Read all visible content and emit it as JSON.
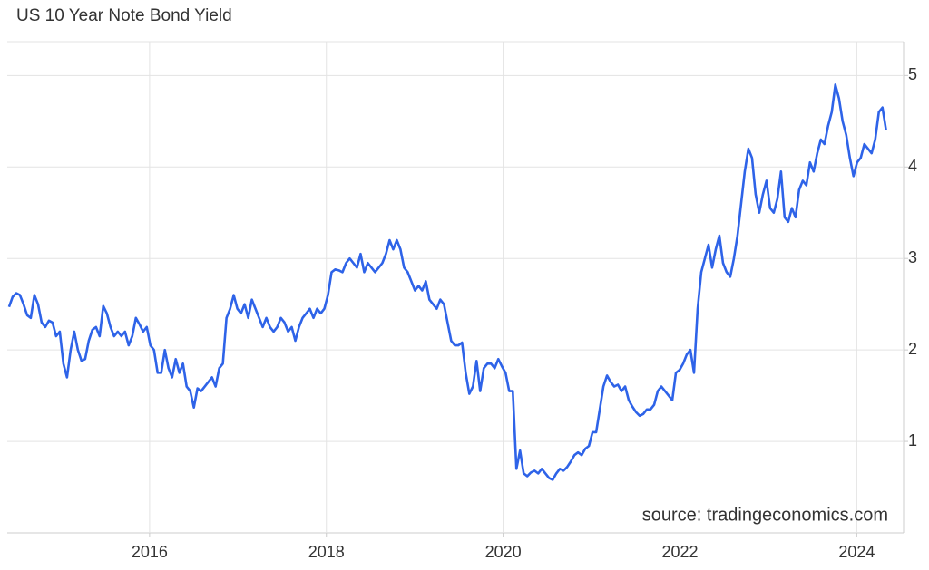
{
  "chart_data": {
    "type": "line",
    "title": "US 10 Year Note Bond Yield",
    "source": "source: tradingeconomics.com",
    "xlim": [
      2014.39,
      2024.53
    ],
    "xticks": [
      2016,
      2018,
      2020,
      2022,
      2024
    ],
    "ylim": [
      0,
      5.37
    ],
    "yticks": [
      1,
      2,
      3,
      4,
      5
    ],
    "grid": true,
    "x": [
      2014.41,
      2014.451,
      2014.492,
      2014.533,
      2014.574,
      2014.615,
      2014.656,
      2014.697,
      2014.738,
      2014.779,
      2014.82,
      2014.861,
      2014.902,
      2014.943,
      2014.984,
      2015.025,
      2015.066,
      2015.107,
      2015.148,
      2015.189,
      2015.23,
      2015.271,
      2015.312,
      2015.353,
      2015.394,
      2015.435,
      2015.476,
      2015.517,
      2015.558,
      2015.599,
      2015.64,
      2015.681,
      2015.722,
      2015.763,
      2015.804,
      2015.845,
      2015.886,
      2015.927,
      2015.968,
      2016.009,
      2016.05,
      2016.091,
      2016.132,
      2016.173,
      2016.214,
      2016.255,
      2016.296,
      2016.337,
      2016.378,
      2016.419,
      2016.46,
      2016.501,
      2016.542,
      2016.583,
      2016.624,
      2016.665,
      2016.706,
      2016.747,
      2016.788,
      2016.829,
      2016.87,
      2016.911,
      2016.952,
      2016.993,
      2017.034,
      2017.075,
      2017.116,
      2017.157,
      2017.198,
      2017.239,
      2017.28,
      2017.321,
      2017.362,
      2017.403,
      2017.444,
      2017.485,
      2017.526,
      2017.567,
      2017.608,
      2017.649,
      2017.69,
      2017.731,
      2017.772,
      2017.813,
      2017.854,
      2017.895,
      2017.936,
      2017.977,
      2018.018,
      2018.059,
      2018.1,
      2018.141,
      2018.182,
      2018.223,
      2018.264,
      2018.305,
      2018.346,
      2018.387,
      2018.428,
      2018.469,
      2018.51,
      2018.551,
      2018.592,
      2018.633,
      2018.674,
      2018.715,
      2018.756,
      2018.797,
      2018.838,
      2018.879,
      2018.92,
      2018.961,
      2019.002,
      2019.043,
      2019.084,
      2019.125,
      2019.166,
      2019.207,
      2019.248,
      2019.289,
      2019.33,
      2019.371,
      2019.412,
      2019.453,
      2019.494,
      2019.535,
      2019.576,
      2019.617,
      2019.658,
      2019.699,
      2019.74,
      2019.781,
      2019.822,
      2019.863,
      2019.904,
      2019.945,
      2019.986,
      2020.027,
      2020.068,
      2020.109,
      2020.15,
      2020.191,
      2020.232,
      2020.273,
      2020.314,
      2020.355,
      2020.396,
      2020.437,
      2020.478,
      2020.519,
      2020.56,
      2020.601,
      2020.642,
      2020.683,
      2020.724,
      2020.765,
      2020.806,
      2020.847,
      2020.888,
      2020.929,
      2020.97,
      2021.011,
      2021.052,
      2021.093,
      2021.134,
      2021.175,
      2021.216,
      2021.257,
      2021.298,
      2021.339,
      2021.38,
      2021.421,
      2021.462,
      2021.503,
      2021.544,
      2021.585,
      2021.626,
      2021.667,
      2021.708,
      2021.749,
      2021.79,
      2021.831,
      2021.872,
      2021.913,
      2021.954,
      2021.995,
      2022.036,
      2022.077,
      2022.118,
      2022.159,
      2022.2,
      2022.241,
      2022.282,
      2022.323,
      2022.364,
      2022.405,
      2022.446,
      2022.487,
      2022.528,
      2022.569,
      2022.61,
      2022.651,
      2022.692,
      2022.733,
      2022.774,
      2022.815,
      2022.856,
      2022.897,
      2022.938,
      2022.979,
      2023.02,
      2023.061,
      2023.102,
      2023.143,
      2023.184,
      2023.225,
      2023.266,
      2023.307,
      2023.348,
      2023.389,
      2023.43,
      2023.471,
      2023.512,
      2023.553,
      2023.594,
      2023.635,
      2023.676,
      2023.717,
      2023.758,
      2023.799,
      2023.84,
      2023.881,
      2023.922,
      2023.963,
      2024.004,
      2024.045,
      2024.086,
      2024.127,
      2024.168,
      2024.209,
      2024.25,
      2024.291,
      2024.332
    ],
    "series": [
      {
        "color": "#2e63e8",
        "values": [
          2.47,
          2.58,
          2.62,
          2.6,
          2.5,
          2.38,
          2.35,
          2.6,
          2.5,
          2.3,
          2.25,
          2.32,
          2.3,
          2.15,
          2.2,
          1.85,
          1.7,
          2.0,
          2.2,
          2.0,
          1.88,
          1.9,
          2.1,
          2.22,
          2.25,
          2.15,
          2.48,
          2.4,
          2.25,
          2.15,
          2.2,
          2.15,
          2.2,
          2.05,
          2.15,
          2.35,
          2.28,
          2.2,
          2.25,
          2.05,
          2.0,
          1.75,
          1.75,
          2.0,
          1.8,
          1.7,
          1.9,
          1.75,
          1.85,
          1.6,
          1.55,
          1.37,
          1.58,
          1.55,
          1.6,
          1.65,
          1.7,
          1.6,
          1.8,
          1.85,
          2.35,
          2.45,
          2.6,
          2.45,
          2.4,
          2.5,
          2.35,
          2.55,
          2.45,
          2.35,
          2.25,
          2.35,
          2.25,
          2.2,
          2.25,
          2.35,
          2.3,
          2.2,
          2.25,
          2.1,
          2.25,
          2.35,
          2.4,
          2.45,
          2.35,
          2.45,
          2.4,
          2.45,
          2.6,
          2.85,
          2.88,
          2.87,
          2.85,
          2.95,
          3.0,
          2.95,
          2.9,
          3.05,
          2.85,
          2.95,
          2.9,
          2.85,
          2.9,
          2.95,
          3.05,
          3.2,
          3.1,
          3.2,
          3.1,
          2.9,
          2.85,
          2.75,
          2.65,
          2.7,
          2.65,
          2.75,
          2.55,
          2.5,
          2.45,
          2.55,
          2.5,
          2.3,
          2.1,
          2.05,
          2.05,
          2.08,
          1.75,
          1.52,
          1.6,
          1.88,
          1.55,
          1.8,
          1.85,
          1.85,
          1.8,
          1.9,
          1.82,
          1.75,
          1.55,
          1.55,
          0.7,
          0.9,
          0.65,
          0.62,
          0.66,
          0.68,
          0.65,
          0.7,
          0.65,
          0.6,
          0.58,
          0.65,
          0.7,
          0.68,
          0.72,
          0.78,
          0.85,
          0.88,
          0.85,
          0.92,
          0.95,
          1.1,
          1.1,
          1.35,
          1.6,
          1.72,
          1.65,
          1.6,
          1.62,
          1.55,
          1.6,
          1.45,
          1.38,
          1.32,
          1.28,
          1.3,
          1.35,
          1.35,
          1.4,
          1.55,
          1.6,
          1.55,
          1.5,
          1.45,
          1.75,
          1.78,
          1.85,
          1.95,
          2.0,
          1.75,
          2.45,
          2.85,
          3.0,
          3.15,
          2.9,
          3.1,
          3.25,
          2.95,
          2.85,
          2.8,
          3.0,
          3.25,
          3.6,
          3.95,
          4.2,
          4.1,
          3.7,
          3.5,
          3.7,
          3.85,
          3.55,
          3.5,
          3.65,
          3.95,
          3.45,
          3.4,
          3.55,
          3.45,
          3.75,
          3.85,
          3.8,
          4.05,
          3.95,
          4.15,
          4.3,
          4.25,
          4.45,
          4.6,
          4.9,
          4.75,
          4.5,
          4.35,
          4.1,
          3.9,
          4.05,
          4.1,
          4.25,
          4.2,
          4.15,
          4.3,
          4.6,
          4.65,
          4.4
        ]
      }
    ]
  }
}
